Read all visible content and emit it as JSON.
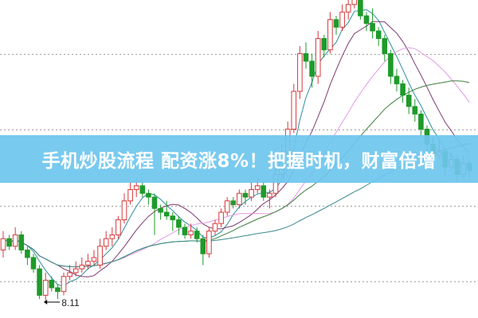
{
  "banner": {
    "text": "手机炒股流程 配资涨8%！把握时机，财富倍增"
  },
  "chart_data": {
    "type": "candlestick",
    "title": "",
    "xlabel": "",
    "ylabel": "",
    "grid": true,
    "grid_style": "dotted",
    "grid_levels": [
      8.38,
      9.38,
      10.39,
      11.39
    ],
    "ylim": [
      8.11,
      12.11
    ],
    "annotation": {
      "label": "8.11",
      "price": 8.11,
      "candle_index": 7
    },
    "colors": {
      "up": "#d8383a",
      "down": "#1e9a2a",
      "ma5": "#2b8f9c",
      "ma10": "#7d3a6e",
      "ma20": "#e49ae6",
      "ma30": "#3f7f3f",
      "ma60": "#3c8a8a"
    },
    "moving_averages": [
      5,
      10,
      20,
      30,
      60
    ],
    "candles_ohlc": [
      [
        8.8,
        9.05,
        8.7,
        8.95
      ],
      [
        8.95,
        9.0,
        8.8,
        8.85
      ],
      [
        8.85,
        9.1,
        8.8,
        9.0
      ],
      [
        9.0,
        9.05,
        8.75,
        8.8
      ],
      [
        8.8,
        8.85,
        8.6,
        8.7
      ],
      [
        8.7,
        8.75,
        8.5,
        8.55
      ],
      [
        8.55,
        8.6,
        8.15,
        8.2
      ],
      [
        8.2,
        8.5,
        8.11,
        8.4
      ],
      [
        8.4,
        8.45,
        8.25,
        8.3
      ],
      [
        8.3,
        8.35,
        8.15,
        8.25
      ],
      [
        8.25,
        8.5,
        8.2,
        8.45
      ],
      [
        8.45,
        8.6,
        8.4,
        8.5
      ],
      [
        8.5,
        8.65,
        8.45,
        8.55
      ],
      [
        8.55,
        8.7,
        8.5,
        8.6
      ],
      [
        8.6,
        8.75,
        8.55,
        8.65
      ],
      [
        8.65,
        8.8,
        8.6,
        8.7
      ],
      [
        8.6,
        8.95,
        8.55,
        8.85
      ],
      [
        8.85,
        9.05,
        8.8,
        8.95
      ],
      [
        8.95,
        9.1,
        8.85,
        9.0
      ],
      [
        9.0,
        9.25,
        8.95,
        9.2
      ],
      [
        9.2,
        9.55,
        9.15,
        9.45
      ],
      [
        9.45,
        9.7,
        9.4,
        9.6
      ],
      [
        9.6,
        9.75,
        9.5,
        9.65
      ],
      [
        9.65,
        9.7,
        9.5,
        9.55
      ],
      [
        9.55,
        9.6,
        9.4,
        9.5
      ],
      [
        9.5,
        9.55,
        9.0,
        9.35
      ],
      [
        9.35,
        9.4,
        9.2,
        9.3
      ],
      [
        9.3,
        9.45,
        9.2,
        9.25
      ],
      [
        9.25,
        9.3,
        9.05,
        9.2
      ],
      [
        9.2,
        9.25,
        9.0,
        9.1
      ],
      [
        9.1,
        9.15,
        8.95,
        9.0
      ],
      [
        9.0,
        9.15,
        8.95,
        9.05
      ],
      [
        9.05,
        9.1,
        8.9,
        8.95
      ],
      [
        8.95,
        9.0,
        8.6,
        8.75
      ],
      [
        8.75,
        9.1,
        8.7,
        9.05
      ],
      [
        9.05,
        9.2,
        9.0,
        9.15
      ],
      [
        9.15,
        9.35,
        9.1,
        9.3
      ],
      [
        9.3,
        9.5,
        9.25,
        9.45
      ],
      [
        9.45,
        9.5,
        9.35,
        9.4
      ],
      [
        9.4,
        9.6,
        9.35,
        9.55
      ],
      [
        9.55,
        9.6,
        9.4,
        9.5
      ],
      [
        9.5,
        9.7,
        9.45,
        9.6
      ],
      [
        9.6,
        9.75,
        9.55,
        9.65
      ],
      [
        9.65,
        9.7,
        9.45,
        9.5
      ],
      [
        9.5,
        9.6,
        9.35,
        9.55
      ],
      [
        9.55,
        9.9,
        9.5,
        9.8
      ],
      [
        9.8,
        10.2,
        9.75,
        10.1
      ],
      [
        10.1,
        10.5,
        10.05,
        10.4
      ],
      [
        10.4,
        11.0,
        10.35,
        10.9
      ],
      [
        10.9,
        11.5,
        10.8,
        11.4
      ],
      [
        11.4,
        11.55,
        11.2,
        11.3
      ],
      [
        11.3,
        11.4,
        10.95,
        11.1
      ],
      [
        11.1,
        11.7,
        11.0,
        11.6
      ],
      [
        11.6,
        11.65,
        11.35,
        11.45
      ],
      [
        11.45,
        11.95,
        11.4,
        11.85
      ],
      [
        11.85,
        11.9,
        11.65,
        11.75
      ],
      [
        11.75,
        12.05,
        11.7,
        11.95
      ],
      [
        11.95,
        12.15,
        11.85,
        12.05
      ],
      [
        12.05,
        12.3,
        12.0,
        12.2
      ],
      [
        12.2,
        12.25,
        11.85,
        11.9
      ],
      [
        11.9,
        11.95,
        11.7,
        11.8
      ],
      [
        11.8,
        12.0,
        11.6,
        11.7
      ],
      [
        11.7,
        11.75,
        11.5,
        11.6
      ],
      [
        11.6,
        11.65,
        11.3,
        11.4
      ],
      [
        11.4,
        11.45,
        11.0,
        11.1
      ],
      [
        11.1,
        11.2,
        10.9,
        11.0
      ],
      [
        11.0,
        11.05,
        10.75,
        10.85
      ],
      [
        10.85,
        10.95,
        10.6,
        10.7
      ],
      [
        10.7,
        10.8,
        10.5,
        10.6
      ],
      [
        10.6,
        10.65,
        10.3,
        10.4
      ],
      [
        10.4,
        10.45,
        10.1,
        10.2
      ],
      [
        10.2,
        10.3,
        9.95,
        10.05
      ],
      [
        10.05,
        10.25,
        10.0,
        10.1
      ],
      [
        10.1,
        10.15,
        9.8,
        9.9
      ],
      [
        9.9,
        10.1,
        9.85,
        10.0
      ],
      [
        10.0,
        10.05,
        9.7,
        9.8
      ],
      [
        9.8,
        10.05,
        9.75,
        9.95
      ],
      [
        9.95,
        10.0,
        9.75,
        9.85
      ]
    ]
  }
}
